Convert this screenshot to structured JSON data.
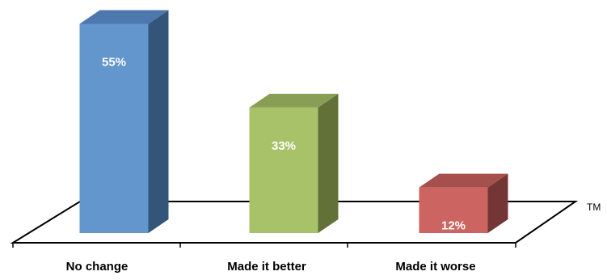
{
  "chart_data": {
    "type": "bar",
    "categories": [
      "No change",
      "Made it better",
      "Made it worse"
    ],
    "values": [
      55,
      33,
      12
    ],
    "data_labels": [
      "55%",
      "33%",
      "12%"
    ],
    "colors": [
      {
        "front": "#6296cc",
        "side": "#34557a",
        "top": "#4d78ad"
      },
      {
        "front": "#a8c26a",
        "side": "#627138",
        "top": "#889e55"
      },
      {
        "front": "#cc6561",
        "side": "#743634",
        "top": "#a6504d"
      }
    ],
    "ylim": [
      0,
      60
    ],
    "grid": false,
    "legend": "none",
    "title": "",
    "xlabel": "",
    "ylabel": ""
  },
  "trademark": "TM"
}
